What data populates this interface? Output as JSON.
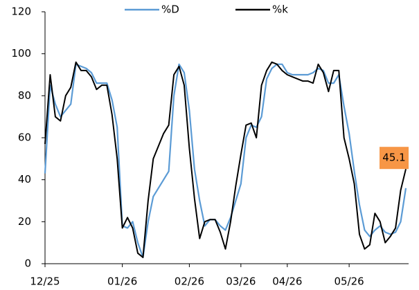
{
  "chart_data": {
    "type": "line",
    "categories": [
      "12/25",
      null,
      null,
      null,
      null,
      null,
      null,
      null,
      null,
      null,
      null,
      null,
      null,
      null,
      null,
      "01/26",
      null,
      null,
      null,
      null,
      null,
      null,
      null,
      null,
      null,
      null,
      null,
      null,
      "02/26",
      null,
      null,
      null,
      null,
      null,
      null,
      null,
      null,
      null,
      "03/26",
      null,
      null,
      null,
      null,
      null,
      null,
      null,
      null,
      "04/26",
      null,
      null,
      null,
      null,
      null,
      null,
      null,
      null,
      null,
      null,
      null,
      "05/26",
      null,
      null,
      null,
      null,
      null,
      null,
      null,
      null,
      null,
      null,
      null
    ],
    "series": [
      {
        "name": "%D",
        "color": "#5b9bd5",
        "values": [
          43,
          85,
          76,
          70,
          73,
          76,
          95,
          94,
          93,
          91,
          86,
          86,
          86,
          78,
          65,
          18,
          17,
          20,
          10,
          3,
          20,
          32,
          36,
          40,
          44,
          80,
          95,
          91,
          73,
          45,
          30,
          18,
          21,
          21,
          18,
          16,
          22,
          30,
          38,
          60,
          66,
          65,
          70,
          88,
          93,
          95,
          95,
          91,
          90,
          90,
          90,
          90,
          91,
          93,
          92,
          86,
          86,
          90,
          75,
          62,
          44,
          28,
          16,
          13,
          16,
          18,
          15,
          14,
          15,
          20,
          36
        ]
      },
      {
        "name": "%k",
        "color": "#000000",
        "values": [
          57,
          90,
          70,
          68,
          80,
          84,
          96,
          92,
          92,
          89,
          83,
          85,
          85,
          71,
          50,
          17,
          22,
          17,
          5,
          3,
          30,
          50,
          56,
          62,
          66,
          90,
          94,
          85,
          55,
          31,
          12,
          20,
          21,
          21,
          15,
          7,
          20,
          37,
          52,
          66,
          67,
          60,
          85,
          92,
          96,
          95,
          92,
          90,
          89,
          88,
          87,
          87,
          86,
          95,
          91,
          82,
          92,
          92,
          60,
          50,
          38,
          14,
          7,
          9,
          24,
          20,
          10,
          13,
          17,
          35,
          45.1
        ]
      }
    ],
    "ylim": [
      0,
      120
    ],
    "yticks": [
      0,
      20,
      40,
      60,
      80,
      100,
      120
    ],
    "grid": false,
    "legend": "top",
    "label_color": "#f79646"
  }
}
